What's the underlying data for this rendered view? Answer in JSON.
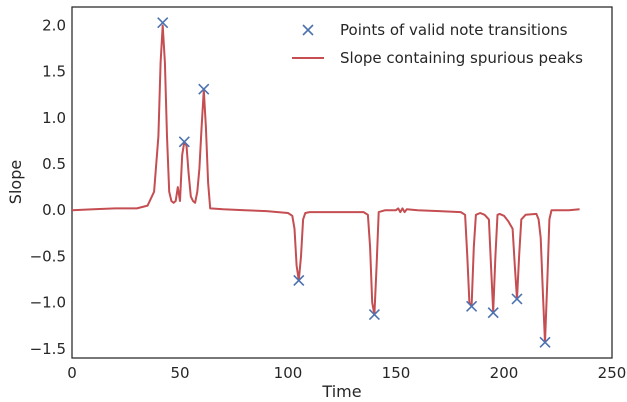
{
  "chart_data": {
    "type": "line",
    "xlabel": "Time",
    "ylabel": "Slope",
    "xlim": [
      0,
      250
    ],
    "ylim": [
      -1.6,
      2.2
    ],
    "grid": false,
    "legend_position": "top-right",
    "x_ticks": [
      "0",
      "50",
      "100",
      "150",
      "200",
      "250"
    ],
    "x_tick_values": [
      0,
      50,
      100,
      150,
      200,
      250
    ],
    "y_ticks": [
      "−1.5",
      "−1.0",
      "−0.5",
      "0.0",
      "0.5",
      "1.0",
      "1.5",
      "2.0"
    ],
    "y_tick_values": [
      -1.5,
      -1.0,
      -0.5,
      0.0,
      0.5,
      1.0,
      1.5,
      2.0
    ],
    "series": [
      {
        "name": "Points of valid note transitions",
        "kind": "scatter",
        "marker": "x",
        "color": "#4c72b0",
        "x": [
          42,
          52,
          61,
          105,
          140,
          185,
          195,
          206,
          219
        ],
        "y": [
          2.03,
          0.74,
          1.31,
          -0.76,
          -1.13,
          -1.04,
          -1.11,
          -0.96,
          -1.43
        ]
      },
      {
        "name": "Slope containing spurious peaks",
        "kind": "line",
        "color": "#c44e52",
        "x": [
          0,
          10,
          20,
          30,
          35,
          38,
          40,
          41,
          42,
          43,
          44,
          45,
          46,
          47,
          48,
          49,
          50,
          51,
          52,
          53,
          54,
          55,
          56,
          57,
          58,
          59,
          60,
          61,
          62,
          63,
          64,
          70,
          80,
          90,
          100,
          102,
          103,
          104,
          105,
          106,
          107,
          108,
          110,
          120,
          135,
          137,
          138,
          139,
          140,
          141,
          142,
          145,
          150,
          151,
          152,
          153,
          154,
          155,
          160,
          170,
          180,
          182,
          183,
          184,
          185,
          186,
          187,
          189,
          191,
          193,
          194,
          195,
          196,
          197,
          198,
          200,
          202,
          204,
          205,
          206,
          207,
          208,
          210,
          215,
          216,
          217,
          218,
          219,
          220,
          221,
          222,
          225,
          230,
          235
        ],
        "y": [
          0.0,
          0.01,
          0.02,
          0.02,
          0.05,
          0.2,
          0.8,
          1.6,
          2.0,
          1.6,
          0.8,
          0.2,
          0.1,
          0.08,
          0.1,
          0.25,
          0.1,
          0.6,
          0.74,
          0.7,
          0.4,
          0.15,
          0.1,
          0.08,
          0.2,
          0.45,
          0.9,
          1.3,
          0.9,
          0.3,
          0.02,
          0.01,
          0.0,
          -0.01,
          -0.03,
          -0.06,
          -0.2,
          -0.6,
          -0.76,
          -0.5,
          -0.1,
          -0.03,
          -0.02,
          -0.02,
          -0.02,
          -0.05,
          -0.4,
          -1.0,
          -1.13,
          -0.6,
          -0.02,
          0.0,
          0.0,
          0.02,
          -0.02,
          0.02,
          -0.02,
          0.01,
          0.0,
          -0.01,
          -0.02,
          -0.05,
          -0.5,
          -1.0,
          -1.04,
          -0.4,
          -0.05,
          -0.03,
          -0.05,
          -0.1,
          -0.6,
          -1.1,
          -0.5,
          -0.05,
          -0.04,
          -0.06,
          -0.12,
          -0.2,
          -0.6,
          -0.96,
          -0.5,
          -0.1,
          -0.05,
          -0.04,
          -0.1,
          -0.3,
          -0.9,
          -1.43,
          -0.8,
          -0.1,
          0.0,
          0.0,
          0.0,
          0.01
        ]
      }
    ]
  }
}
